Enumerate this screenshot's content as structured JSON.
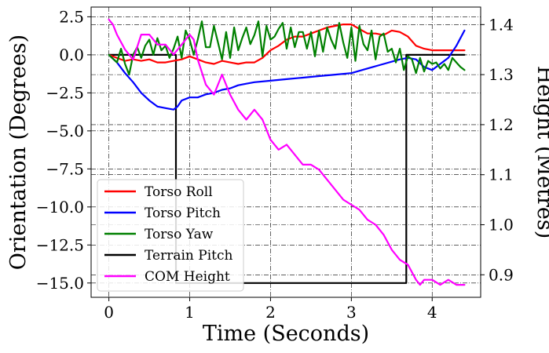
{
  "chart_data": {
    "type": "line",
    "title": "",
    "xlabel": "Time (Seconds)",
    "ylabel": "Orientation (Degrees)",
    "y2label": "Height (Metres)",
    "xlim": [
      -0.22,
      4.6
    ],
    "ylim": [
      -15.94,
      3.14
    ],
    "y2lim": [
      0.855,
      1.435
    ],
    "xticks": [
      0,
      1,
      2,
      3,
      4
    ],
    "xtick_labels": [
      "0",
      "1",
      "2",
      "3",
      "4"
    ],
    "yticks": [
      2.5,
      0.0,
      -2.5,
      -5.0,
      -7.5,
      -10.0,
      -12.5,
      -15.0
    ],
    "ytick_labels": [
      "2.5",
      "0.0",
      "−2.5",
      "−5.0",
      "−7.5",
      "−10.0",
      "−12.5",
      "−15.0"
    ],
    "y2ticks": [
      1.4,
      1.3,
      1.2,
      1.1,
      1.0,
      0.9
    ],
    "y2tick_labels": [
      "1.4",
      "1.3",
      "1.2",
      "1.1",
      "1.0",
      "0.9"
    ],
    "grid": true,
    "legend_position": "lower-left",
    "series": [
      {
        "name": "Torso Roll",
        "color": "#ff0000",
        "axis": "left",
        "x": [
          0,
          0.1,
          0.2,
          0.3,
          0.4,
          0.5,
          0.6,
          0.7,
          0.8,
          0.9,
          1.0,
          1.1,
          1.2,
          1.3,
          1.4,
          1.5,
          1.6,
          1.7,
          1.8,
          1.9,
          2.0,
          2.1,
          2.2,
          2.3,
          2.4,
          2.5,
          2.6,
          2.7,
          2.8,
          2.9,
          3.0,
          3.1,
          3.2,
          3.3,
          3.4,
          3.5,
          3.6,
          3.7,
          3.8,
          3.9,
          4.0,
          4.1,
          4.2,
          4.3,
          4.4
        ],
        "values": [
          0.0,
          -0.2,
          -0.4,
          -0.3,
          -0.4,
          -0.3,
          -0.5,
          -0.5,
          -0.4,
          -0.3,
          -0.1,
          -0.3,
          -0.5,
          -0.6,
          -0.4,
          -0.5,
          -0.6,
          -0.5,
          -0.5,
          -0.2,
          0.3,
          0.6,
          1.0,
          1.2,
          1.2,
          1.4,
          1.6,
          1.8,
          1.9,
          2.0,
          2.0,
          1.7,
          1.4,
          1.4,
          1.3,
          1.6,
          1.5,
          1.2,
          0.6,
          0.4,
          0.3,
          0.3,
          0.3,
          0.3,
          0.3
        ]
      },
      {
        "name": "Torso Pitch",
        "color": "#0000ff",
        "axis": "left",
        "x": [
          0,
          0.1,
          0.2,
          0.3,
          0.4,
          0.5,
          0.6,
          0.7,
          0.8,
          0.85,
          0.9,
          1.0,
          1.1,
          1.2,
          1.3,
          1.4,
          1.5,
          1.6,
          1.7,
          1.8,
          2.0,
          2.2,
          2.4,
          2.6,
          2.8,
          3.0,
          3.2,
          3.4,
          3.6,
          3.7,
          3.8,
          3.9,
          4.0,
          4.1,
          4.2,
          4.3,
          4.4
        ],
        "values": [
          0.0,
          -0.5,
          -1.2,
          -1.8,
          -2.5,
          -3.0,
          -3.4,
          -3.5,
          -3.6,
          -3.4,
          -3.0,
          -2.8,
          -2.8,
          -2.6,
          -2.5,
          -2.3,
          -2.2,
          -2.0,
          -1.9,
          -1.8,
          -1.7,
          -1.6,
          -1.5,
          -1.4,
          -1.3,
          -1.2,
          -0.9,
          -0.6,
          -0.3,
          -0.2,
          -0.3,
          -0.8,
          -1.0,
          -0.6,
          -0.2,
          0.6,
          1.6
        ]
      },
      {
        "name": "Torso Yaw",
        "color": "#008000",
        "axis": "left",
        "x": [
          0,
          0.1,
          0.15,
          0.2,
          0.25,
          0.3,
          0.35,
          0.4,
          0.45,
          0.5,
          0.55,
          0.6,
          0.65,
          0.7,
          0.75,
          0.8,
          0.85,
          0.9,
          0.95,
          1.0,
          1.05,
          1.1,
          1.15,
          1.2,
          1.25,
          1.3,
          1.35,
          1.4,
          1.45,
          1.5,
          1.55,
          1.6,
          1.65,
          1.7,
          1.75,
          1.8,
          1.85,
          1.9,
          1.95,
          2.0,
          2.05,
          2.1,
          2.15,
          2.2,
          2.25,
          2.3,
          2.35,
          2.4,
          2.45,
          2.5,
          2.55,
          2.6,
          2.65,
          2.7,
          2.75,
          2.8,
          2.85,
          2.9,
          2.95,
          3.0,
          3.05,
          3.1,
          3.15,
          3.2,
          3.25,
          3.3,
          3.35,
          3.4,
          3.45,
          3.5,
          3.55,
          3.6,
          3.65,
          3.7,
          3.75,
          3.8,
          3.85,
          3.9,
          3.95,
          4.0,
          4.05,
          4.1,
          4.15,
          4.2,
          4.25,
          4.3,
          4.35,
          4.4
        ],
        "values": [
          0.0,
          -0.5,
          0.4,
          -0.6,
          -1.3,
          0.0,
          0.5,
          -0.2,
          0.6,
          1.0,
          0.0,
          1.1,
          0.3,
          0.6,
          -0.2,
          0.4,
          1.2,
          -0.2,
          1.6,
          1.0,
          0.0,
          1.0,
          2.2,
          0.5,
          0.5,
          1.9,
          0.8,
          -0.3,
          1.5,
          -0.2,
          1.8,
          0.3,
          1.1,
          1.8,
          0.7,
          1.3,
          2.2,
          -0.1,
          1.9,
          1.0,
          1.2,
          1.7,
          2.1,
          0.4,
          1.8,
          0.5,
          1.5,
          1.5,
          0.4,
          1.5,
          -0.1,
          1.6,
          0.2,
          1.8,
          1.0,
          0.4,
          2.1,
          0.8,
          -0.2,
          1.8,
          -0.4,
          1.9,
          0.7,
          0.3,
          1.6,
          -0.3,
          1.2,
          1.4,
          0.2,
          0.4,
          -0.5,
          0.4,
          -1.0,
          -0.1,
          -0.3,
          -1.2,
          -0.2,
          -1.1,
          -0.4,
          -0.6,
          -0.5,
          -0.9,
          -0.6,
          -1.0,
          -0.2,
          -0.5,
          -0.8,
          -1.0
        ]
      },
      {
        "name": "Terrain Pitch",
        "color": "#000000",
        "axis": "left",
        "x": [
          0,
          0.83,
          0.83,
          3.68,
          3.68,
          4.4
        ],
        "values": [
          0.0,
          0.0,
          -15.0,
          -15.0,
          0.0,
          0.0
        ]
      },
      {
        "name": "COM Height",
        "color": "#ff00ff",
        "axis": "right",
        "x": [
          0,
          0.05,
          0.1,
          0.2,
          0.3,
          0.4,
          0.5,
          0.6,
          0.7,
          0.8,
          0.9,
          1.0,
          1.05,
          1.1,
          1.2,
          1.3,
          1.4,
          1.5,
          1.6,
          1.7,
          1.8,
          1.9,
          2.0,
          2.1,
          2.2,
          2.3,
          2.4,
          2.5,
          2.6,
          2.7,
          2.8,
          2.9,
          3.0,
          3.1,
          3.2,
          3.3,
          3.4,
          3.5,
          3.6,
          3.7,
          3.8,
          3.85,
          3.9,
          4.0,
          4.1,
          4.2,
          4.3,
          4.4
        ],
        "values": [
          1.41,
          1.4,
          1.38,
          1.35,
          1.33,
          1.38,
          1.38,
          1.36,
          1.36,
          1.34,
          1.36,
          1.38,
          1.37,
          1.33,
          1.28,
          1.26,
          1.3,
          1.26,
          1.23,
          1.21,
          1.23,
          1.21,
          1.17,
          1.15,
          1.16,
          1.14,
          1.12,
          1.12,
          1.11,
          1.09,
          1.07,
          1.05,
          1.04,
          1.03,
          1.01,
          1.0,
          0.98,
          0.95,
          0.93,
          0.92,
          0.89,
          0.88,
          0.89,
          0.89,
          0.88,
          0.89,
          0.88,
          0.88
        ]
      }
    ]
  }
}
